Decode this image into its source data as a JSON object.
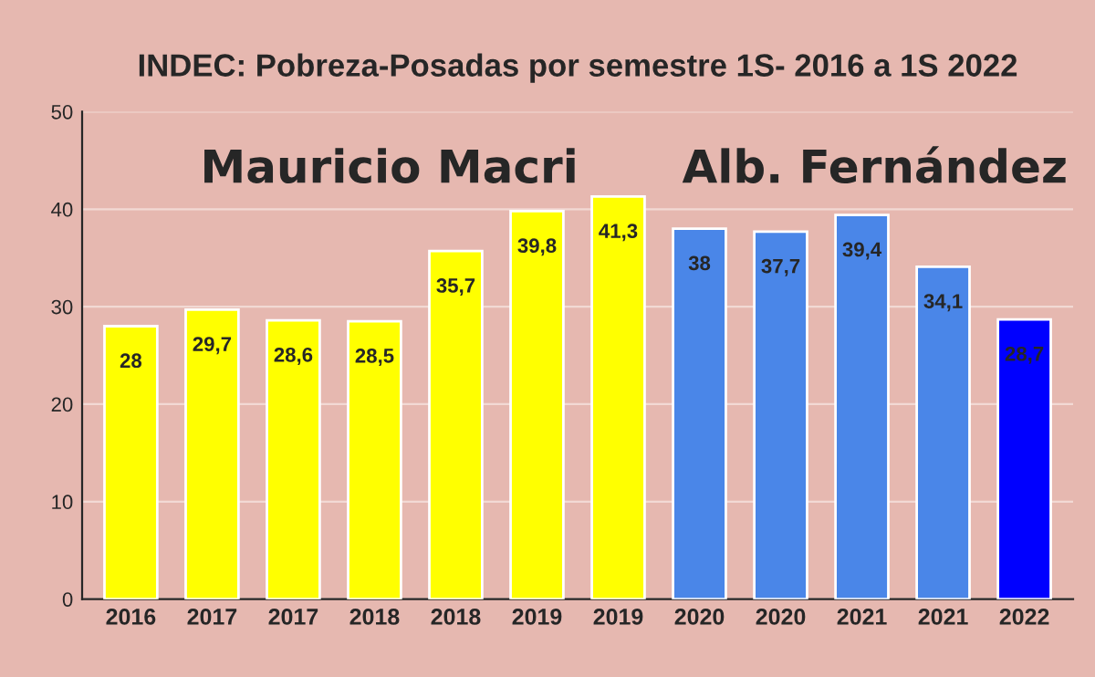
{
  "chart_data": {
    "type": "bar",
    "title": "INDEC: Pobreza-Posadas por semestre 1S- 2016 a 1S 2022",
    "categories": [
      "2016",
      "2017",
      "2017",
      "2018",
      "2018",
      "2019",
      "2019",
      "2020",
      "2020",
      "2021",
      "2021",
      "2022"
    ],
    "values": [
      28,
      29.7,
      28.6,
      28.5,
      35.7,
      39.8,
      41.3,
      38,
      37.7,
      39.4,
      34.1,
      28.7
    ],
    "colors": [
      "#ffff00",
      "#ffff00",
      "#ffff00",
      "#ffff00",
      "#ffff00",
      "#ffff00",
      "#ffff00",
      "#4a86e8",
      "#4a86e8",
      "#4a86e8",
      "#4a86e8",
      "#0000ff"
    ],
    "value_labels": [
      "28",
      "29,7",
      "28,6",
      "28,5",
      "35,7",
      "39,8",
      "41,3",
      "38",
      "37,7",
      "39,4",
      "34,1",
      "28,7"
    ],
    "annotations": [
      "Mauricio Macri",
      "Alb. Fernández"
    ],
    "ylim": [
      0,
      50
    ],
    "yticks": [
      0,
      10,
      20,
      30,
      40,
      50
    ],
    "grid": "y",
    "legend": false
  }
}
